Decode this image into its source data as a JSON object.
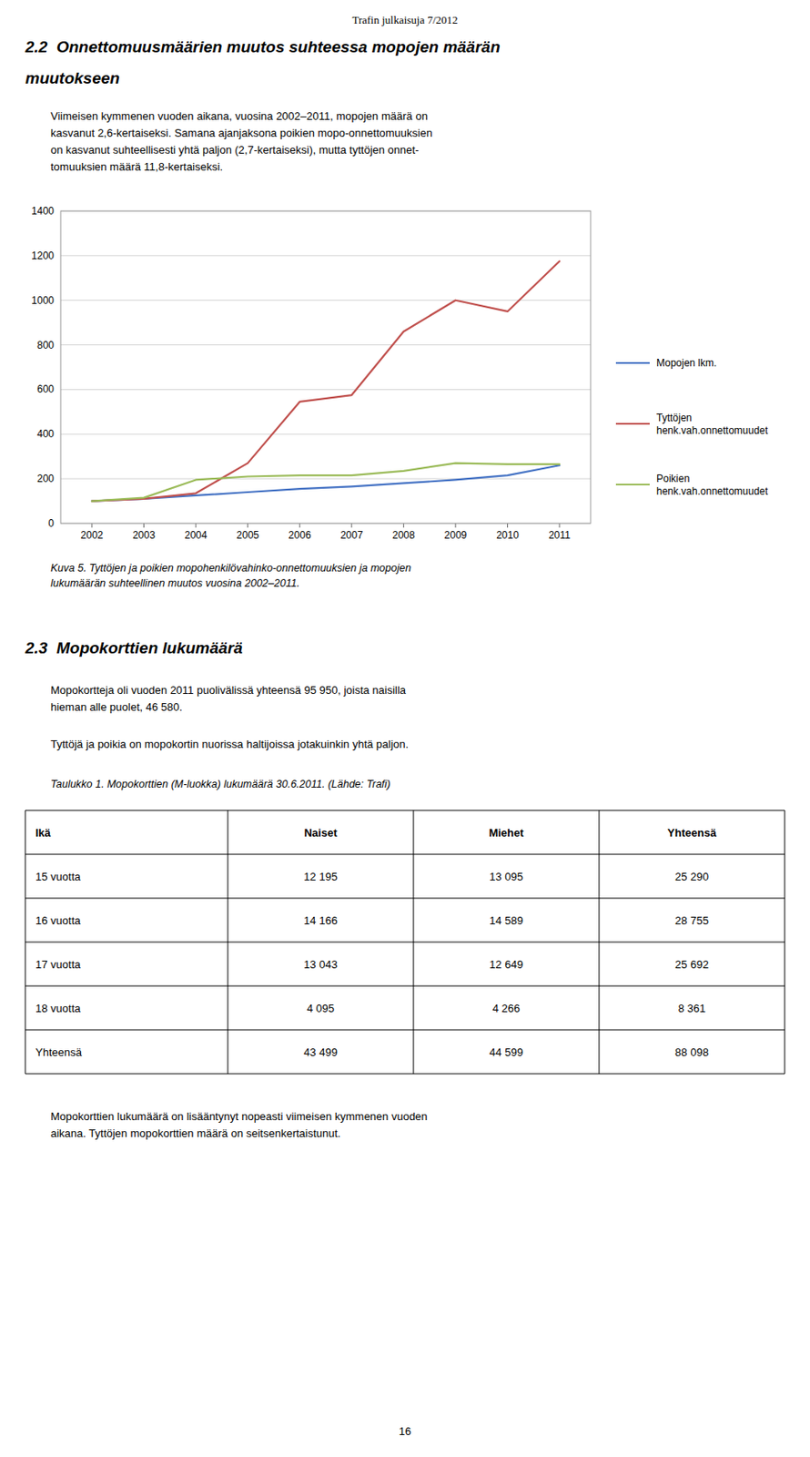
{
  "chart_data": {
    "type": "line",
    "x": [
      2002,
      2003,
      2004,
      2005,
      2006,
      2007,
      2008,
      2009,
      2010,
      2011
    ],
    "xlim": [
      2001.4,
      2011.6
    ],
    "xticks": [
      2002,
      2003,
      2004,
      2005,
      2006,
      2007,
      2008,
      2009,
      2010,
      2011
    ],
    "ylim": [
      0,
      1400
    ],
    "yticks": [
      0,
      200,
      400,
      600,
      800,
      1000,
      1200,
      1400
    ],
    "grid": true,
    "legend": "right",
    "series": [
      {
        "name": "Mopojen lkm.",
        "color": "#4472C4",
        "values": [
          100,
          110,
          125,
          140,
          155,
          165,
          180,
          195,
          215,
          260
        ]
      },
      {
        "name": "Tyttöjen\nhenk.vah.onnettomuudet",
        "color": "#C0504D",
        "values": [
          100,
          110,
          135,
          270,
          545,
          575,
          860,
          1000,
          950,
          1175
        ]
      },
      {
        "name": "Poikien\nhenk.vah.onnettomuudet",
        "color": "#9BBB59",
        "values": [
          100,
          115,
          195,
          210,
          215,
          215,
          235,
          270,
          265,
          265
        ]
      }
    ]
  },
  "page": {
    "header": "Trafin julkaisuja 7/2012",
    "heading_1": [
      "2.2  Onnettomuusmäärien muutos suhteessa mopojen määrän",
      "muutokseen"
    ],
    "paragraph_1": [
      "Viimeisen kymmenen vuoden aikana, vuosina 2002–2011, mopojen määrä on",
      "kasvanut 2,6-kertaiseksi. Samana ajanjaksona poikien mopo-onnettomuuksien",
      "on kasvanut suhteellisesti yhtä paljon (2,7-kertaiseksi), mutta tyttöjen onnet-",
      "tomuuksien määrä 11,8-kertaiseksi."
    ],
    "figure_caption": [
      "Kuva 5. Tyttöjen ja poikien mopohenkilövahinko-onnettomuuksien ja mopojen",
      "lukumäärän suhteellinen muutos vuosina 2002–2011."
    ],
    "heading_2": [
      "2.3  Mopokorttien lukumäärä"
    ],
    "paragraph_2": [
      "Mopokortteja oli vuoden 2011 puolivälissä yhteensä 95 950, joista naisilla",
      "hieman alle puolet, 46 580."
    ],
    "paragraph_3": [
      "Tyttöjä ja poikia on mopokortin nuorissa haltijoissa jotakuinkin yhtä paljon."
    ],
    "table_caption": "Taulukko 1. Mopokorttien (M-luokka) lukumäärä 30.6.2011. (Lähde: Trafi)",
    "table": {
      "headers": [
        "Ikä",
        "Naiset",
        "Miehet",
        "Yhteensä"
      ],
      "rows": [
        [
          "15 vuotta",
          "12 195",
          "13 095",
          "25 290"
        ],
        [
          "16 vuotta",
          "14 166",
          "14 589",
          "28 755"
        ],
        [
          "17 vuotta",
          "13 043",
          "12 649",
          "25 692"
        ],
        [
          "18 vuotta",
          "4 095",
          "4 266",
          "8 361"
        ],
        [
          "Yhteensä",
          "43 499",
          "44 599",
          "88 098"
        ]
      ]
    },
    "paragraph_4": [
      "Mopokorttien lukumäärä on lisääntynyt nopeasti viimeisen kymmenen vuoden",
      "aikana. Tyttöjen mopokorttien määrä on seitsenkertaistunut."
    ],
    "page_number": "16"
  }
}
